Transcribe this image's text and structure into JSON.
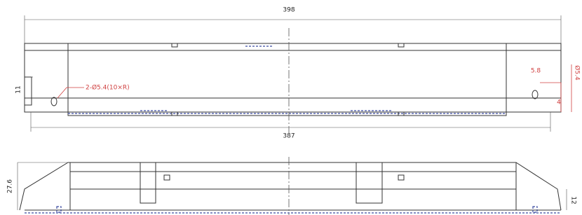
{
  "dimensions": {
    "overall_length": "398",
    "hole_spacing": "387",
    "hole_height": "11",
    "hole_note": "2-Ø5.4(10×R)",
    "slot_offset": "5.8",
    "slot_depth": "4",
    "slot_width": "Ø5.4",
    "side_height": "27.6",
    "base_height": "12"
  }
}
